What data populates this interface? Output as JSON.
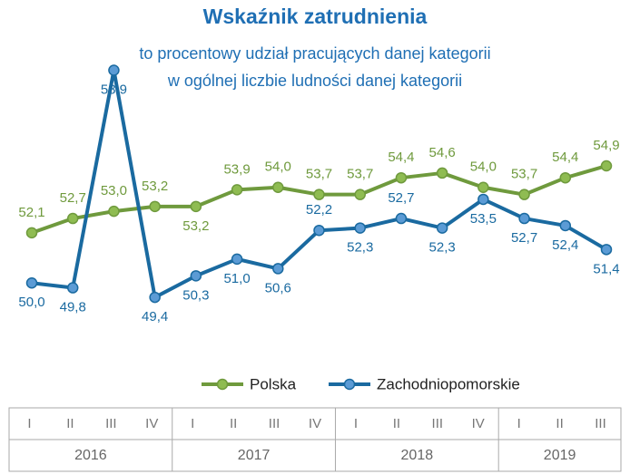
{
  "chart_data": {
    "type": "line",
    "title": "Wskaźnik zatrudnienia",
    "subtitle": [
      "to procentowy udział pracujących danej kategorii",
      "w ogólnej liczbie ludności danej kategorii"
    ],
    "categories": [
      "I",
      "II",
      "III",
      "IV",
      "I",
      "II",
      "III",
      "IV",
      "I",
      "II",
      "III",
      "IV",
      "I",
      "II",
      "III"
    ],
    "years": [
      "2016",
      "2017",
      "2018",
      "2019"
    ],
    "ylim": [
      48,
      56
    ],
    "series": [
      {
        "name": "Polska",
        "color": "#6f9a3d",
        "marker_color": "#8fbc52",
        "values": [
          52.1,
          52.7,
          53.0,
          53.2,
          53.2,
          53.9,
          54.0,
          53.7,
          53.7,
          54.4,
          54.6,
          54.0,
          53.7,
          54.4,
          54.9
        ],
        "value_labels": [
          "52,1",
          "52,7",
          "53,0",
          "53,2",
          "53,2",
          "53,9",
          "54,0",
          "53,7",
          "53,7",
          "54,4",
          "54,6",
          "54,0",
          "53,7",
          "54,4",
          "54,9"
        ]
      },
      {
        "name": "Zachodniopomorskie",
        "color": "#1a6aa0",
        "marker_color": "#5b9bd5",
        "values": [
          50.0,
          49.8,
          58.9,
          49.4,
          50.3,
          51.0,
          50.6,
          52.2,
          52.3,
          52.7,
          52.3,
          53.5,
          52.7,
          52.4,
          51.4
        ],
        "value_labels": [
          "50,0",
          "49,8",
          "58,9",
          "49,4",
          "50,3",
          "51,0",
          "50,6",
          "52,2",
          "52,3",
          "52,7",
          "52,3",
          "53,5",
          "52,7",
          "52,4",
          "51,4"
        ]
      }
    ],
    "legend": "bottom"
  }
}
